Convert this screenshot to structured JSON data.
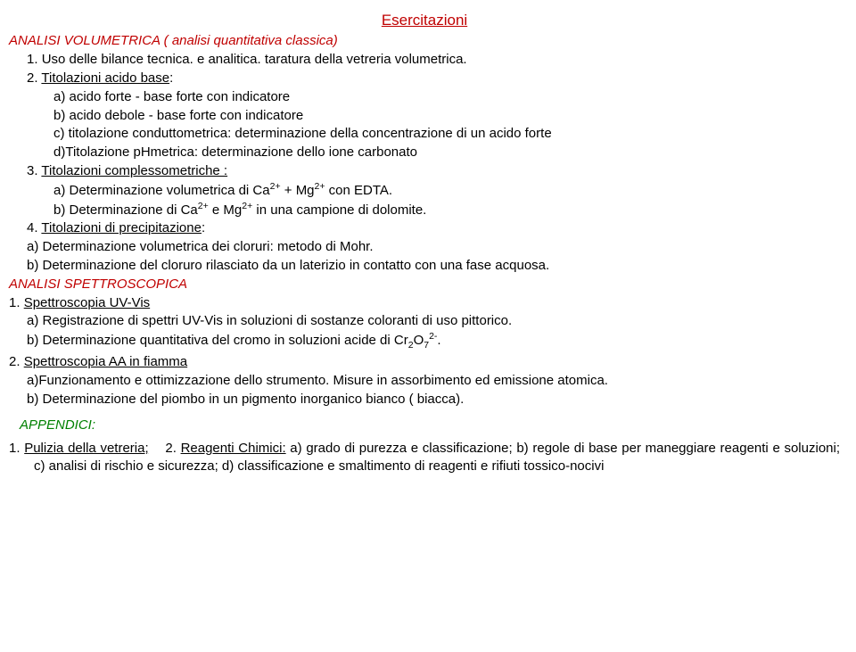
{
  "title": "Esercitazioni",
  "h1": "ANALISI VOLUMETRICA ( analisi quantitativa classica)",
  "item1_num": "1. ",
  "item1_txt": "Uso delle bilance tecnica. e analitica. taratura della vetreria volumetrica.",
  "item2_num": "2. ",
  "item2_u": "Titolazioni acido base",
  "item2_colon": ":",
  "item2_a": "a) acido forte - base forte con indicatore",
  "item2_b": "b) acido debole - base forte con indicatore",
  "item2_c": "c) titolazione conduttometrica: determinazione della concentrazione di un acido forte",
  "item2_d": "d)Titolazione pHmetrica: determinazione dello ione carbonato",
  "item3_num": "3. ",
  "item3_u": "Titolazioni  complessometriche :",
  "item3_a1": "a) Determinazione volumetrica di Ca",
  "item3_a2": " + Mg",
  "item3_a3": " con EDTA.",
  "item3_b1": "b) Determinazione di Ca",
  "item3_b2": " e Mg",
  "item3_b3": " in una campione di dolomite.",
  "sup2plus": "2+",
  "item4_num": "4. ",
  "item4_u": "Titolazioni di precipitazione",
  "item4_colon": ":",
  "item4_a": "a) Determinazione volumetrica dei cloruri: metodo di Mohr.",
  "item4_b": "b) Determinazione del cloruro rilasciato da un laterizio in contatto con una fase acquosa.",
  "h2": "ANALISI SPETTROSCOPICA",
  "sp1_num": "1. ",
  "sp1_u": " Spettroscopia  UV-Vis",
  "sp1_a": "a) Registrazione di spettri UV-Vis in soluzioni di sostanze coloranti di uso pittorico.",
  "sp1_b1": "b) Determinazione quantitativa del cromo in soluzioni acide di Cr",
  "sp1_b_sub2": "2",
  "sp1_b_O": "O",
  "sp1_b_sub7": "7",
  "sp1_b_sup": "2-",
  "sp1_b_end": ".",
  "sp2_num": "2. ",
  "sp2_u": " Spettroscopia  AA in fiamma",
  "sp2_a": "a)Funzionamento e ottimizzazione dello strumento. Misure in assorbimento ed emissione atomica.",
  "sp2_b": "b) Determinazione del piombo in un pigmento inorganico bianco ( biacca).",
  "appendici": "APPENDICI:",
  "app_num1": "1. ",
  "app_link1": "Pulizia della vetreria;",
  "app_sep": "    2. ",
  "app_link2": "Reagenti Chimici:",
  "app_tail": " a) grado di purezza e classificazione;  b) regole di base per maneggiare reagenti e soluzioni; c) analisi di rischio e sicurezza; d) classificazione e smaltimento di reagenti e rifiuti tossico-nocivi"
}
